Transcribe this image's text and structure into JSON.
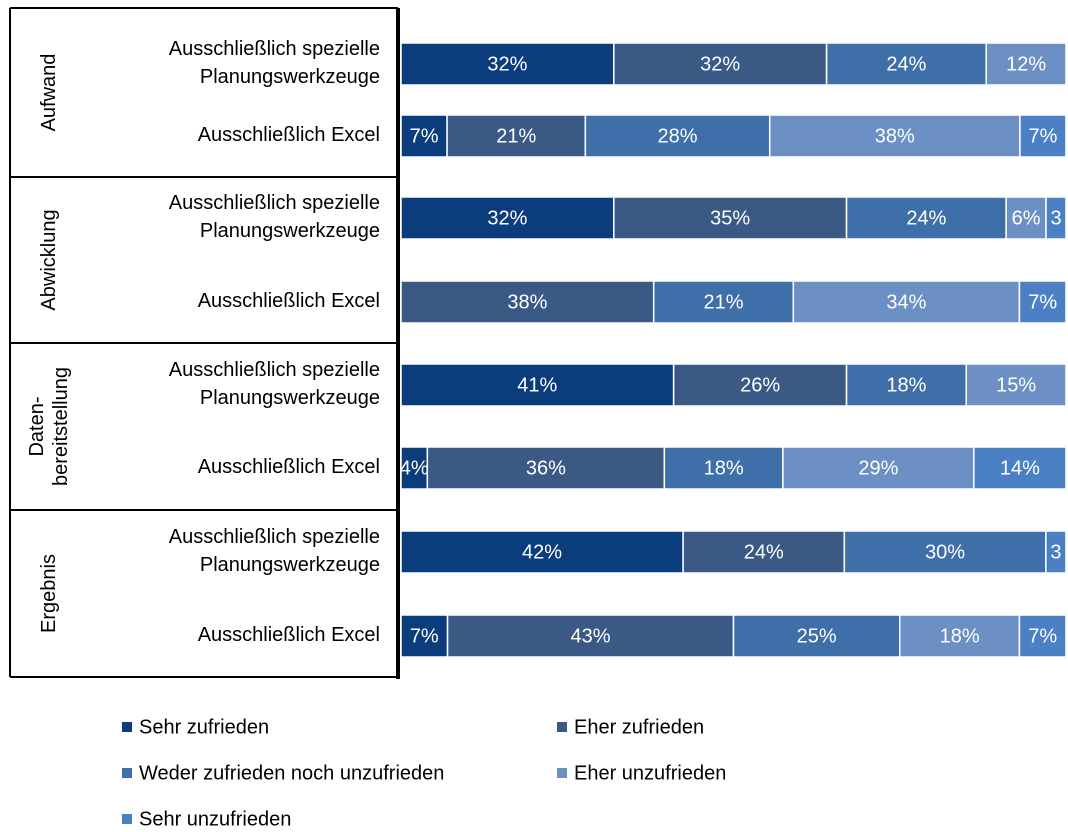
{
  "chart_data": {
    "type": "stacked-bar-horizontal",
    "groups": [
      [
        "Aufwand"
      ],
      [
        "Abwicklung"
      ],
      [
        "Daten-",
        "bereitstellung"
      ],
      [
        "Ergebnis"
      ]
    ],
    "categories": [
      [
        "Ausschließlich spezielle",
        "Planungswerkzeuge"
      ],
      [
        "Ausschließlich Excel"
      ],
      [
        "Ausschließlich spezielle",
        "Planungswerkzeuge"
      ],
      [
        "Ausschließlich Excel"
      ],
      [
        "Ausschließlich spezielle",
        "Planungswerkzeuge"
      ],
      [
        "Ausschließlich Excel"
      ],
      [
        "Ausschließlich spezielle",
        "Planungswerkzeuge"
      ],
      [
        "Ausschließlich Excel"
      ]
    ],
    "series": [
      {
        "name": "Sehr zufrieden",
        "color": "#0b3c7c",
        "values": [
          32,
          7,
          32,
          0,
          41,
          4,
          42,
          7
        ],
        "value_labels": [
          "32%",
          "7%",
          "32%",
          null,
          "41%",
          "4%",
          "42%",
          "7%"
        ]
      },
      {
        "name": "Eher zufrieden",
        "color": "#3a5a85",
        "values": [
          32,
          21,
          35,
          38,
          26,
          36,
          24,
          43
        ],
        "value_labels": [
          "32%",
          "21%",
          "35%",
          "38%",
          "26%",
          "36%",
          "24%",
          "43%"
        ]
      },
      {
        "name": "Weder zufrieden noch unzufrieden",
        "color": "#3f6fa9",
        "values": [
          24,
          28,
          24,
          21,
          18,
          18,
          30,
          25
        ],
        "value_labels": [
          "24%",
          "28%",
          "24%",
          "21%",
          "18%",
          "18%",
          "30%",
          "25%"
        ]
      },
      {
        "name": "Eher unzufrieden",
        "color": "#6c8fc4",
        "values": [
          12,
          38,
          6,
          34,
          15,
          29,
          0,
          18
        ],
        "value_labels": [
          "12%",
          "38%",
          "6%",
          "34%",
          "15%",
          "29%",
          null,
          "18%"
        ]
      },
      {
        "name": "Sehr unzufrieden",
        "color": "#4b80c4",
        "values": [
          0,
          7,
          3,
          7,
          0,
          14,
          3,
          7
        ],
        "value_labels": [
          null,
          "7%",
          "3",
          "7%",
          null,
          "14%",
          "3",
          "7%"
        ]
      }
    ]
  }
}
